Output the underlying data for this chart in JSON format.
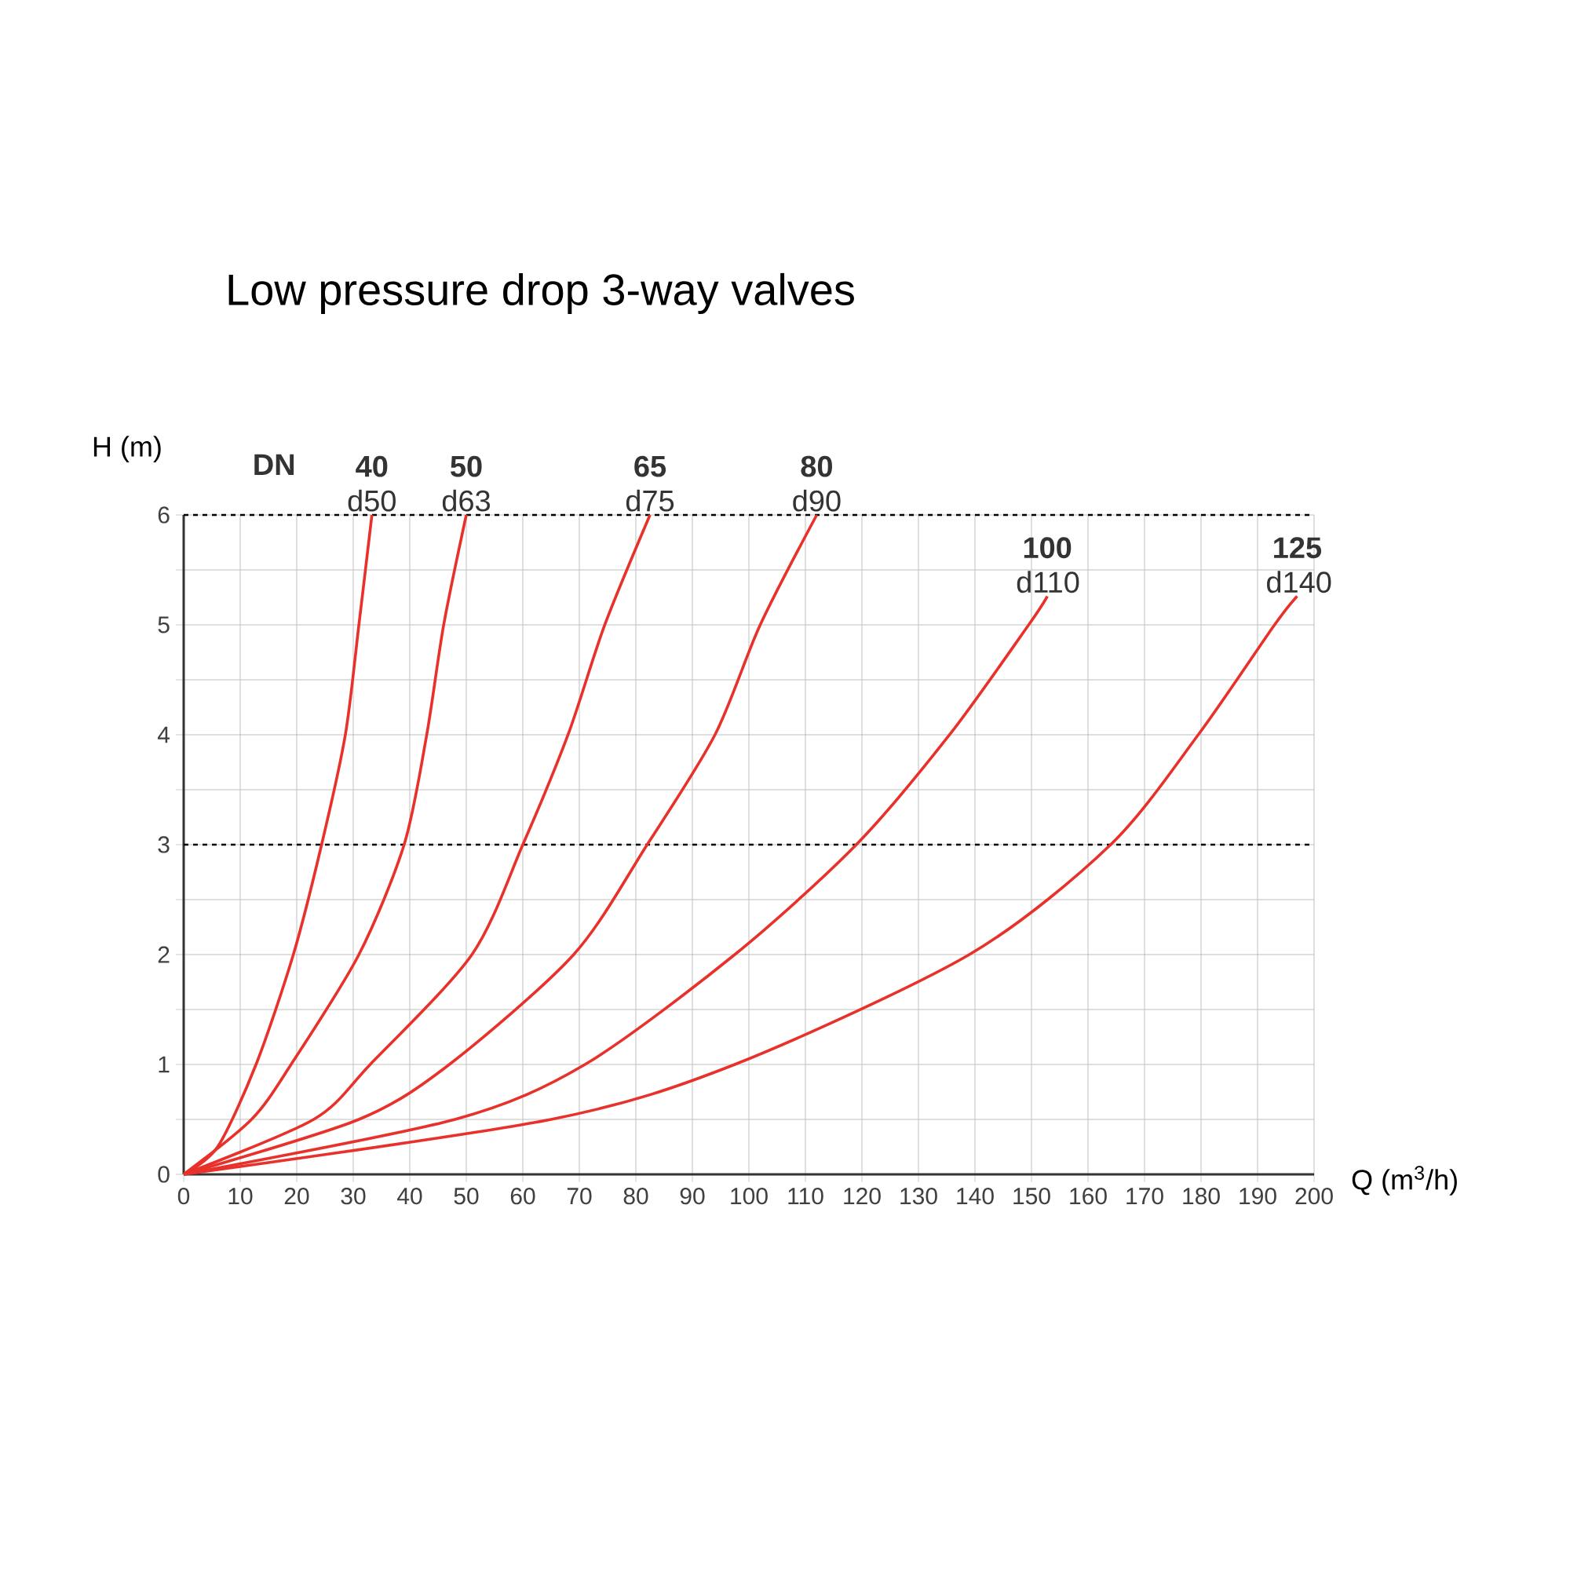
{
  "chart_data": {
    "type": "line",
    "title": "Low pressure drop 3-way valves",
    "xlabel": "Q (m$^{3}$/h)",
    "ylabel": "H (m)",
    "annotations": [
      "**DN**"
    ],
    "xlim": [
      0,
      200
    ],
    "ylim": [
      0,
      6
    ],
    "xticks": [
      0,
      10,
      20,
      30,
      40,
      50,
      60,
      70,
      80,
      90,
      100,
      110,
      120,
      130,
      140,
      150,
      160,
      170,
      180,
      190,
      200
    ],
    "yticks": [
      0,
      {
        "value": 0.5,
        "label": null
      },
      1,
      {
        "value": 1.5,
        "label": null
      },
      2,
      {
        "value": 2.5,
        "label": null
      },
      3,
      {
        "value": 3.5,
        "label": null
      },
      4,
      {
        "value": 4.5,
        "label": null
      },
      5,
      {
        "value": 5.5,
        "label": null
      },
      6
    ],
    "grid": true,
    "legend": false,
    "marker": "none",
    "line_style": "solid",
    "ref_lines": [
      {
        "axis": "y",
        "value": 3,
        "line_style": "dashed",
        "color": "#000000"
      },
      {
        "axis": "y",
        "value": 6,
        "line_style": "dashed",
        "color": "#000000"
      }
    ],
    "series": [
      {
        "name": "**40** d50",
        "color": "#e8312a",
        "x": [
          0,
          6,
          12.8,
          19.4,
          24.4,
          28.6,
          31,
          33.3
        ],
        "values": [
          0,
          0.25,
          1,
          2,
          3,
          4,
          5,
          6
        ]
      },
      {
        "name": "**50** d63",
        "color": "#e8312a",
        "x": [
          0,
          12,
          19,
          31,
          39,
          43,
          46,
          50
        ],
        "values": [
          0,
          0.5,
          1,
          2,
          3,
          4,
          5,
          6
        ]
      },
      {
        "name": "**65** d75",
        "color": "#e8312a",
        "x": [
          0,
          23,
          33,
          51,
          60,
          68,
          74.5,
          82.5
        ],
        "values": [
          0,
          0.5,
          1,
          2,
          3,
          4,
          5,
          6
        ]
      },
      {
        "name": "**80** d90",
        "color": "#e8312a",
        "x": [
          0,
          31,
          47,
          69,
          82,
          94,
          102,
          112
        ],
        "values": [
          0,
          0.5,
          1,
          2,
          3,
          4,
          5,
          6
        ]
      },
      {
        "name": "**100** d110",
        "color": "#e8312a",
        "x": [
          0,
          48,
          71,
          97.5,
          119,
          135.5,
          149.5,
          152.8
        ],
        "values": [
          0,
          0.5,
          1,
          2,
          3,
          4,
          5,
          5.26
        ]
      },
      {
        "name": "**125** d140",
        "color": "#e8312a",
        "x": [
          0,
          65,
          97.5,
          139,
          164,
          179.5,
          193,
          197
        ],
        "values": [
          0,
          0.5,
          1,
          2,
          3,
          4,
          5,
          5.26
        ]
      }
    ]
  }
}
